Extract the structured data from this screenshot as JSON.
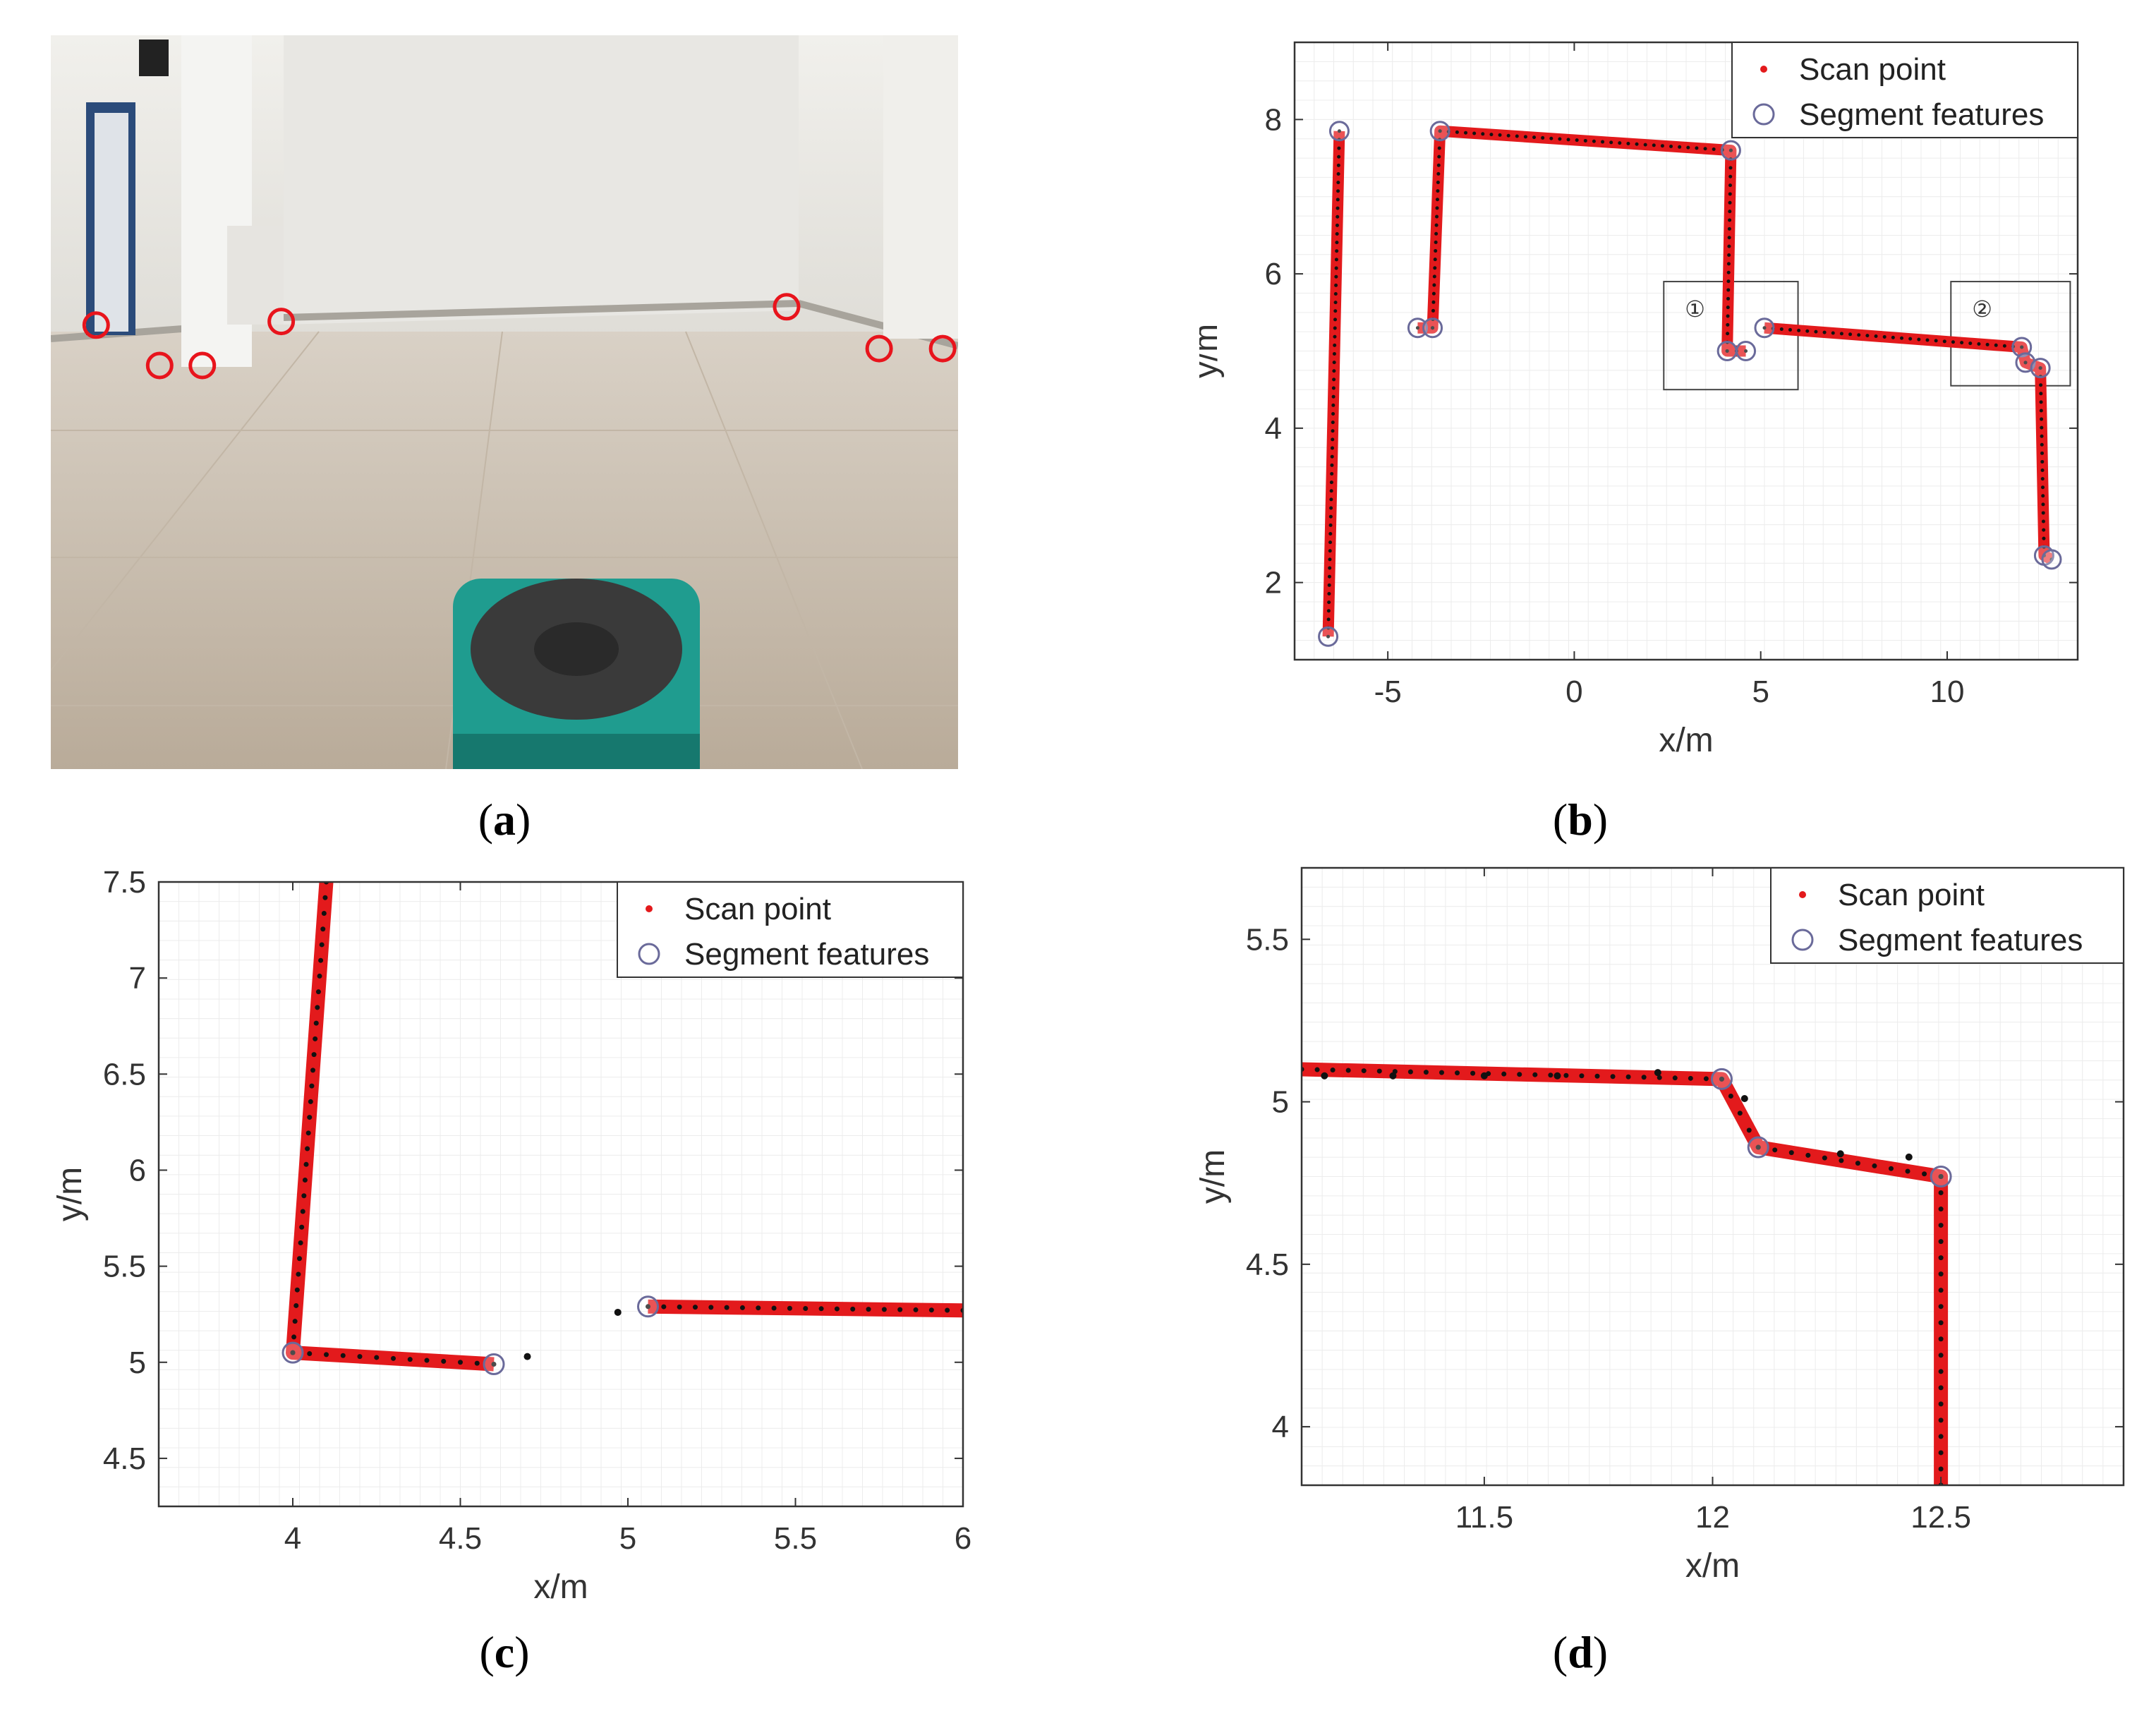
{
  "captions": {
    "a": {
      "open": "(",
      "letter": "a",
      "close": ")"
    },
    "b": {
      "open": "(",
      "letter": "b",
      "close": ")"
    },
    "c": {
      "open": "(",
      "letter": "c",
      "close": ")"
    },
    "d": {
      "open": "(",
      "letter": "d",
      "close": ")"
    }
  },
  "photo": {
    "description_colors": {
      "wall": "#e9e8e4",
      "floor": "#cbbfb0",
      "robot_body": "#1f9c8f",
      "robot_top": "#333333",
      "marker": "#e8141c"
    },
    "markers": [
      {
        "x": 0.05,
        "y": 0.395
      },
      {
        "x": 0.12,
        "y": 0.45
      },
      {
        "x": 0.167,
        "y": 0.45
      },
      {
        "x": 0.254,
        "y": 0.39
      },
      {
        "x": 0.811,
        "y": 0.37
      },
      {
        "x": 0.913,
        "y": 0.427
      },
      {
        "x": 0.983,
        "y": 0.427
      }
    ]
  },
  "chart_data": [
    {
      "id": "b",
      "type": "line",
      "xlabel": "x/m",
      "ylabel": "y/m",
      "xlim": [
        -7.5,
        13.5
      ],
      "ylim": [
        1.0,
        9.0
      ],
      "xticks": [
        -5,
        0,
        5,
        10
      ],
      "yticks": [
        2,
        4,
        6,
        8
      ],
      "grid": true,
      "legend": {
        "placement": "top-right",
        "entries": [
          "Scan point",
          "Segment features"
        ]
      },
      "segments": [
        [
          [
            -6.6,
            1.3
          ],
          [
            -6.3,
            7.85
          ]
        ],
        [
          [
            -4.2,
            5.3
          ],
          [
            -3.8,
            5.3
          ],
          [
            -3.6,
            7.85
          ],
          [
            4.2,
            7.6
          ],
          [
            4.1,
            5.0
          ],
          [
            4.6,
            5.0
          ]
        ],
        [
          [
            5.1,
            5.3
          ],
          [
            12.0,
            5.05
          ],
          [
            12.1,
            4.85
          ],
          [
            12.5,
            4.78
          ],
          [
            12.6,
            2.35
          ],
          [
            12.8,
            2.3
          ]
        ]
      ],
      "features": [
        [
          -6.6,
          1.3
        ],
        [
          -6.3,
          7.85
        ],
        [
          -4.2,
          5.3
        ],
        [
          -3.8,
          5.3
        ],
        [
          -3.6,
          7.85
        ],
        [
          4.2,
          7.6
        ],
        [
          4.1,
          5.0
        ],
        [
          4.6,
          5.0
        ],
        [
          5.1,
          5.3
        ],
        [
          12.0,
          5.05
        ],
        [
          12.1,
          4.85
        ],
        [
          12.5,
          4.78
        ],
        [
          12.6,
          2.35
        ],
        [
          12.8,
          2.3
        ]
      ],
      "boxes": [
        {
          "label": "①",
          "x0": 2.4,
          "x1": 6.0,
          "y0": 4.5,
          "y1": 5.9
        },
        {
          "label": "②",
          "x0": 10.1,
          "x1": 13.3,
          "y0": 4.55,
          "y1": 5.9
        }
      ]
    },
    {
      "id": "c",
      "type": "line",
      "xlabel": "x/m",
      "ylabel": "y/m",
      "xlim": [
        3.6,
        6.0
      ],
      "ylim": [
        4.25,
        7.5
      ],
      "xticks": [
        4,
        4.5,
        5,
        5.5,
        6
      ],
      "yticks": [
        4.5,
        5,
        5.5,
        6,
        6.5,
        7,
        7.5
      ],
      "grid": true,
      "legend": {
        "placement": "top-right",
        "entries": [
          "Scan point",
          "Segment features"
        ]
      },
      "segments": [
        [
          [
            4.1,
            7.5
          ],
          [
            4.0,
            5.05
          ],
          [
            4.6,
            4.99
          ]
        ],
        [
          [
            5.06,
            5.29
          ],
          [
            6.0,
            5.27
          ]
        ]
      ],
      "features": [
        [
          4.0,
          5.05
        ],
        [
          4.6,
          4.99
        ],
        [
          5.06,
          5.29
        ]
      ],
      "outliers": [
        [
          4.7,
          5.03
        ],
        [
          4.97,
          5.26
        ]
      ]
    },
    {
      "id": "d",
      "type": "line",
      "xlabel": "x/m",
      "ylabel": "y/m",
      "xlim": [
        11.1,
        12.9
      ],
      "ylim": [
        3.82,
        5.72
      ],
      "xticks": [
        11.5,
        12,
        12.5
      ],
      "yticks": [
        4,
        4.5,
        5,
        5.5
      ],
      "grid": true,
      "legend": {
        "placement": "top-right",
        "entries": [
          "Scan point",
          "Segment features"
        ]
      },
      "segments": [
        [
          [
            11.1,
            5.1
          ],
          [
            12.02,
            5.07
          ],
          [
            12.1,
            4.86
          ],
          [
            12.5,
            4.77
          ],
          [
            12.5,
            3.82
          ]
        ]
      ],
      "features": [
        [
          12.02,
          5.07
        ],
        [
          12.1,
          4.86
        ],
        [
          12.5,
          4.77
        ]
      ],
      "outliers": [
        [
          11.15,
          5.08
        ],
        [
          11.3,
          5.08
        ],
        [
          11.5,
          5.08
        ],
        [
          11.66,
          5.08
        ],
        [
          11.88,
          5.09
        ],
        [
          12.07,
          5.01
        ],
        [
          12.28,
          4.84
        ],
        [
          12.43,
          4.83
        ]
      ]
    }
  ]
}
